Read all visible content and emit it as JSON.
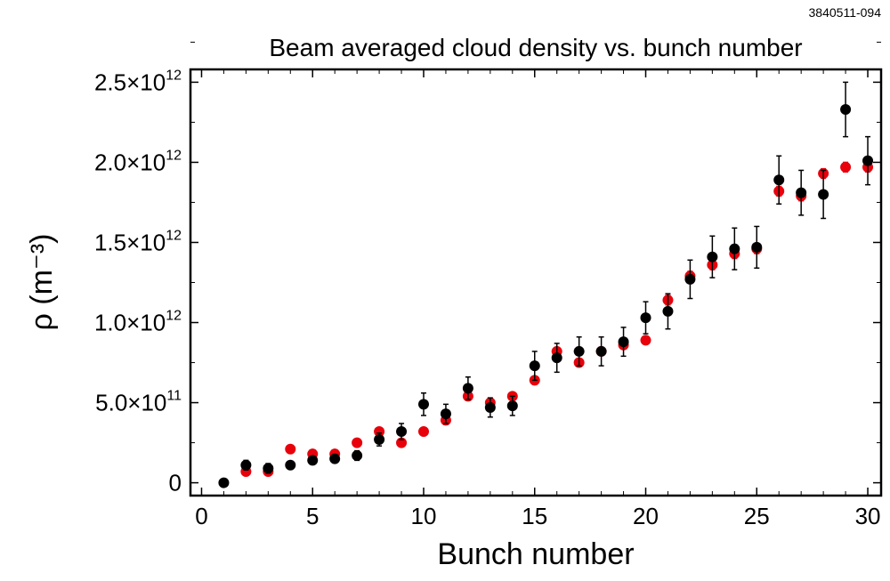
{
  "figure_id": "3840511-094",
  "chart_data": {
    "type": "scatter",
    "title": "Beam averaged cloud density vs. bunch number",
    "xlabel": "Bunch number",
    "ylabel": "ρ (m⁻³)",
    "xlim": [
      -0.5,
      30.6
    ],
    "ylim": [
      -80000000000.0,
      2580000000000.0
    ],
    "x_ticks": [
      {
        "value": 0,
        "label": "0"
      },
      {
        "value": 5,
        "label": "5"
      },
      {
        "value": 10,
        "label": "10"
      },
      {
        "value": 15,
        "label": "15"
      },
      {
        "value": 20,
        "label": "20"
      },
      {
        "value": 25,
        "label": "25"
      },
      {
        "value": 30,
        "label": "30"
      }
    ],
    "y_ticks": [
      {
        "value": 0,
        "mantissa": "0",
        "exponent": ""
      },
      {
        "value": 500000000000.0,
        "mantissa": "5.0×10",
        "exponent": "11"
      },
      {
        "value": 1000000000000.0,
        "mantissa": "1.0×10",
        "exponent": "12"
      },
      {
        "value": 1500000000000.0,
        "mantissa": "1.5×10",
        "exponent": "12"
      },
      {
        "value": 2000000000000.0,
        "mantissa": "2.0×10",
        "exponent": "12"
      },
      {
        "value": 2500000000000.0,
        "mantissa": "2.5×10",
        "exponent": "12"
      }
    ],
    "series": [
      {
        "color": "#e8000b",
        "points": [
          {
            "x": 2,
            "y": 70000000000.0,
            "err": 20000000000.0
          },
          {
            "x": 3,
            "y": 70000000000.0,
            "err": 20000000000.0
          },
          {
            "x": 4,
            "y": 210000000000.0,
            "err": 20000000000.0
          },
          {
            "x": 5,
            "y": 180000000000.0,
            "err": 20000000000.0
          },
          {
            "x": 6,
            "y": 180000000000.0,
            "err": 20000000000.0
          },
          {
            "x": 7,
            "y": 250000000000.0,
            "err": 20000000000.0
          },
          {
            "x": 8,
            "y": 320000000000.0,
            "err": 20000000000.0
          },
          {
            "x": 9,
            "y": 250000000000.0,
            "err": 20000000000.0
          },
          {
            "x": 10,
            "y": 320000000000.0,
            "err": 20000000000.0
          },
          {
            "x": 11,
            "y": 390000000000.0,
            "err": 20000000000.0
          },
          {
            "x": 12,
            "y": 540000000000.0,
            "err": 20000000000.0
          },
          {
            "x": 13,
            "y": 500000000000.0,
            "err": 20000000000.0
          },
          {
            "x": 14,
            "y": 540000000000.0,
            "err": 20000000000.0
          },
          {
            "x": 15,
            "y": 640000000000.0,
            "err": 20000000000.0
          },
          {
            "x": 16,
            "y": 820000000000.0,
            "err": 20000000000.0
          },
          {
            "x": 17,
            "y": 750000000000.0,
            "err": 20000000000.0
          },
          {
            "x": 18,
            "y": 820000000000.0,
            "err": 20000000000.0
          },
          {
            "x": 19,
            "y": 860000000000.0,
            "err": 20000000000.0
          },
          {
            "x": 20,
            "y": 890000000000.0,
            "err": 20000000000.0
          },
          {
            "x": 21,
            "y": 1140000000000.0,
            "err": 30000000000.0
          },
          {
            "x": 22,
            "y": 1290000000000.0,
            "err": 30000000000.0
          },
          {
            "x": 23,
            "y": 1360000000000.0,
            "err": 30000000000.0
          },
          {
            "x": 24,
            "y": 1430000000000.0,
            "err": 30000000000.0
          },
          {
            "x": 25,
            "y": 1460000000000.0,
            "err": 30000000000.0
          },
          {
            "x": 26,
            "y": 1820000000000.0,
            "err": 30000000000.0
          },
          {
            "x": 27,
            "y": 1790000000000.0,
            "err": 30000000000.0
          },
          {
            "x": 28,
            "y": 1930000000000.0,
            "err": 30000000000.0
          },
          {
            "x": 29,
            "y": 1970000000000.0,
            "err": 30000000000.0
          },
          {
            "x": 30,
            "y": 1970000000000.0,
            "err": 30000000000.0
          }
        ]
      },
      {
        "color": "#000000",
        "points": [
          {
            "x": 1,
            "y": 0.0,
            "err": 0.0
          },
          {
            "x": 2,
            "y": 110000000000.0,
            "err": 30000000000.0
          },
          {
            "x": 3,
            "y": 90000000000.0,
            "err": 30000000000.0
          },
          {
            "x": 4,
            "y": 110000000000.0,
            "err": 20000000000.0
          },
          {
            "x": 5,
            "y": 140000000000.0,
            "err": 20000000000.0
          },
          {
            "x": 6,
            "y": 150000000000.0,
            "err": 20000000000.0
          },
          {
            "x": 7,
            "y": 170000000000.0,
            "err": 30000000000.0
          },
          {
            "x": 8,
            "y": 270000000000.0,
            "err": 40000000000.0
          },
          {
            "x": 9,
            "y": 320000000000.0,
            "err": 50000000000.0
          },
          {
            "x": 10,
            "y": 490000000000.0,
            "err": 70000000000.0
          },
          {
            "x": 11,
            "y": 430000000000.0,
            "err": 60000000000.0
          },
          {
            "x": 12,
            "y": 590000000000.0,
            "err": 70000000000.0
          },
          {
            "x": 13,
            "y": 470000000000.0,
            "err": 60000000000.0
          },
          {
            "x": 14,
            "y": 480000000000.0,
            "err": 60000000000.0
          },
          {
            "x": 15,
            "y": 730000000000.0,
            "err": 90000000000.0
          },
          {
            "x": 16,
            "y": 780000000000.0,
            "err": 90000000000.0
          },
          {
            "x": 17,
            "y": 820000000000.0,
            "err": 90000000000.0
          },
          {
            "x": 18,
            "y": 820000000000.0,
            "err": 90000000000.0
          },
          {
            "x": 19,
            "y": 880000000000.0,
            "err": 90000000000.0
          },
          {
            "x": 20,
            "y": 1030000000000.0,
            "err": 100000000000.0
          },
          {
            "x": 21,
            "y": 1070000000000.0,
            "err": 110000000000.0
          },
          {
            "x": 22,
            "y": 1270000000000.0,
            "err": 120000000000.0
          },
          {
            "x": 23,
            "y": 1410000000000.0,
            "err": 130000000000.0
          },
          {
            "x": 24,
            "y": 1460000000000.0,
            "err": 130000000000.0
          },
          {
            "x": 25,
            "y": 1470000000000.0,
            "err": 130000000000.0
          },
          {
            "x": 26,
            "y": 1890000000000.0,
            "err": 150000000000.0
          },
          {
            "x": 27,
            "y": 1810000000000.0,
            "err": 140000000000.0
          },
          {
            "x": 28,
            "y": 1800000000000.0,
            "err": 150000000000.0
          },
          {
            "x": 29,
            "y": 2330000000000.0,
            "err": 170000000000.0
          },
          {
            "x": 30,
            "y": 2010000000000.0,
            "err": 150000000000.0
          }
        ]
      }
    ],
    "grid": false,
    "legend": "none"
  }
}
